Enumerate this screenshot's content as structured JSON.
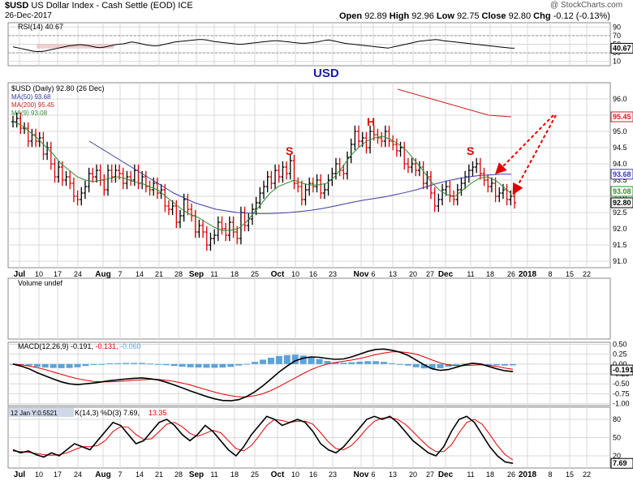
{
  "header": {
    "symbol": "$USD",
    "name": "US Dollar Index - Cash Settle (EOD)",
    "exchange": "ICE",
    "date": "26-Dec-2017",
    "watermark": "@ StockCharts.com",
    "quote": {
      "open_label": "Open",
      "open": "92.89",
      "high_label": "High",
      "high": "92.96",
      "low_label": "Low",
      "low": "92.75",
      "close_label": "Close",
      "close": "92.80",
      "chg_label": "Chg",
      "chg": "-0.12 (-0.13%)"
    }
  },
  "colors": {
    "background": "#ffffff",
    "grid": "#d8d8d8",
    "up_bar": "#000000",
    "down_bar": "#e00000",
    "ma50": "#3b3ba8",
    "ma200": "#cc2020",
    "ma9": "#2e8b2e",
    "macd": "#000000",
    "signal": "#e00000",
    "histogram": "#5ba3d9",
    "annotation": "#e00000",
    "usd_text": "#1b1ba8"
  },
  "chart_data": [
    {
      "type": "line",
      "panel": "rsi",
      "label": "RSI(14) 40.67",
      "value_badge": "40.67",
      "y_ticks": [
        "90",
        "70",
        "50",
        "30",
        "10"
      ],
      "ylim": [
        0,
        100
      ],
      "values": [
        44,
        42,
        40,
        38,
        36,
        34,
        33,
        33,
        34,
        36,
        38,
        40,
        42,
        44,
        46,
        47,
        48,
        49,
        48,
        47,
        45,
        43,
        42,
        43,
        45,
        47,
        49,
        50,
        51,
        53,
        55,
        54,
        52,
        50,
        48,
        47,
        46,
        47,
        49,
        51,
        53,
        55,
        56,
        57,
        58,
        59,
        60,
        61,
        61,
        60,
        58,
        56,
        55,
        54,
        53,
        52,
        51,
        50,
        50,
        51,
        52,
        53,
        54,
        55,
        56,
        57,
        58,
        58,
        57,
        56,
        55,
        54,
        53,
        52,
        52,
        53,
        54,
        55,
        57,
        59,
        60,
        58,
        56,
        54,
        52,
        51,
        50,
        49,
        48,
        47,
        46,
        45,
        44,
        43,
        42,
        41,
        43,
        45,
        47,
        49,
        51,
        53,
        55,
        57,
        58,
        59,
        60,
        61,
        60,
        58,
        57,
        56,
        55,
        54,
        53,
        52,
        51,
        50,
        49,
        48,
        47,
        46,
        45,
        44,
        43,
        42,
        41,
        40.67
      ]
    },
    {
      "type": "bar",
      "panel": "price",
      "series": [
        {
          "name": "$USD (Daily) 92.80 (26 Dec)",
          "kind": "ohlc"
        },
        {
          "name": "MA(50) 93.68",
          "kind": "line"
        },
        {
          "name": "MA(200) 95.45",
          "kind": "line"
        },
        {
          "name": "MA(9) 93.08",
          "kind": "line"
        }
      ],
      "badges": [
        "95.45",
        "93.68",
        "93.08",
        "92.80"
      ],
      "y_ticks": [
        "96.0",
        "95.5",
        "95.0",
        "94.5",
        "94.0",
        "93.5",
        "93.0",
        "92.5",
        "92.0",
        "91.5",
        "91.0"
      ],
      "ylim": [
        90.8,
        96.5
      ],
      "x_ticks": [
        "Jul",
        "10",
        "17",
        "24",
        "Aug",
        "7",
        "14",
        "21",
        "28",
        "Sep",
        "11",
        "18",
        "25",
        "Oct",
        "10",
        "16",
        "23",
        "Nov",
        "6",
        "13",
        "20",
        "27",
        "Dec",
        "11",
        "18",
        "26",
        "2018",
        "8",
        "15",
        "22"
      ],
      "x_tick_bold": [
        "Jul",
        "Aug",
        "Sep",
        "Oct",
        "Nov",
        "Dec",
        "2018"
      ],
      "closes": [
        95.3,
        95.4,
        95.1,
        95.1,
        94.7,
        94.9,
        94.7,
        94.8,
        94.3,
        94.5,
        94.0,
        93.6,
        93.9,
        93.5,
        93.6,
        93.4,
        93.0,
        92.9,
        93.1,
        93.3,
        93.7,
        93.6,
        93.8,
        93.5,
        93.2,
        93.8,
        93.6,
        93.8,
        93.7,
        93.4,
        93.6,
        93.5,
        93.8,
        93.4,
        93.6,
        93.3,
        93.2,
        93.4,
        93.1,
        93.2,
        92.7,
        92.6,
        92.7,
        92.2,
        92.4,
        92.9,
        92.6,
        92.4,
        91.9,
        92.1,
        91.9,
        91.5,
        91.7,
        91.8,
        92.2,
        92.0,
        91.8,
        92.2,
        91.9,
        91.7,
        92.5,
        92.1,
        92.3,
        92.6,
        92.8,
        93.1,
        93.3,
        93.6,
        93.4,
        93.8,
        93.6,
        93.9,
        93.7,
        94.1,
        93.4,
        93.3,
        92.9,
        93.2,
        93.4,
        93.3,
        93.5,
        93.1,
        93.2,
        93.5,
        93.7,
        94.0,
        93.8,
        93.7,
        94.2,
        94.6,
        95.0,
        94.7,
        94.8,
        94.5,
        95.0,
        94.9,
        94.8,
        94.7,
        95.0,
        94.7,
        94.6,
        94.4,
        94.5,
        94.0,
        93.9,
        94.0,
        93.8,
        93.9,
        93.4,
        93.6,
        93.1,
        92.7,
        92.9,
        93.2,
        93.3,
        93.0,
        92.9,
        93.2,
        93.4,
        93.6,
        93.8,
        93.9,
        94.0,
        93.7,
        93.5,
        93.3,
        93.4,
        93.0,
        93.1,
        93.2,
        92.9,
        93.0,
        92.8
      ],
      "ma50": [
        94.7,
        94.5,
        94.3,
        94.1,
        93.9,
        93.7,
        93.5,
        93.3,
        93.1,
        92.95,
        92.8,
        92.7,
        92.6,
        92.55,
        92.5,
        92.48,
        92.47,
        92.47,
        92.48,
        92.5,
        92.53,
        92.57,
        92.62,
        92.68,
        92.75,
        92.82,
        92.88,
        92.93,
        92.98,
        93.05,
        93.12,
        93.2,
        93.3,
        93.4,
        93.48,
        93.55,
        93.6,
        93.64,
        93.66,
        93.68,
        93.68
      ],
      "ma200": [
        96.3,
        96.1,
        95.9,
        95.7,
        95.5,
        95.45
      ],
      "ma9": [
        95.3,
        95.2,
        95.0,
        94.8,
        94.55,
        94.3,
        94.0,
        93.8,
        93.6,
        93.5,
        93.45,
        93.5,
        93.55,
        93.6,
        93.55,
        93.45,
        93.4,
        93.3,
        93.2,
        93.0,
        92.8,
        92.6,
        92.45,
        92.35,
        92.2,
        92.05,
        91.95,
        91.95,
        92.0,
        92.2,
        92.5,
        92.8,
        93.1,
        93.3,
        93.4,
        93.5,
        93.4,
        93.35,
        93.35,
        93.4,
        93.6,
        93.9,
        94.25,
        94.5,
        94.7,
        94.8,
        94.85,
        94.75,
        94.6,
        94.4,
        94.1,
        93.8,
        93.45,
        93.2,
        93.05,
        93.0,
        93.2,
        93.4,
        93.55,
        93.6,
        93.5,
        93.3,
        93.08
      ]
    },
    {
      "type": "bar",
      "panel": "volume",
      "label": "Volume undef",
      "values": []
    },
    {
      "type": "line",
      "panel": "macd",
      "label": "MACD(12,26,9)",
      "macd_value": "-0.191",
      "signal_value": "-0.131",
      "hist_value": "-0.060",
      "badge": "-0.191",
      "y_ticks": [
        "0.50",
        "0.25",
        "0.00",
        "-0.25",
        "-0.50",
        "-0.75",
        "-1.00"
      ],
      "ylim": [
        -1.05,
        0.55
      ],
      "macd": [
        0.0,
        -0.05,
        -0.12,
        -0.22,
        -0.3,
        -0.38,
        -0.45,
        -0.5,
        -0.52,
        -0.5,
        -0.48,
        -0.45,
        -0.42,
        -0.4,
        -0.38,
        -0.36,
        -0.35,
        -0.37,
        -0.4,
        -0.46,
        -0.53,
        -0.6,
        -0.68,
        -0.75,
        -0.82,
        -0.88,
        -0.92,
        -0.93,
        -0.9,
        -0.82,
        -0.7,
        -0.55,
        -0.38,
        -0.2,
        -0.05,
        0.08,
        0.15,
        0.18,
        0.17,
        0.14,
        0.12,
        0.13,
        0.18,
        0.25,
        0.32,
        0.37,
        0.38,
        0.35,
        0.3,
        0.22,
        0.1,
        -0.02,
        -0.12,
        -0.16,
        -0.14,
        -0.08,
        -0.02,
        0.02,
        0.0,
        -0.06,
        -0.12,
        -0.17,
        -0.191
      ],
      "signal": [
        0.0,
        -0.02,
        -0.05,
        -0.09,
        -0.14,
        -0.2,
        -0.26,
        -0.32,
        -0.37,
        -0.41,
        -0.44,
        -0.45,
        -0.45,
        -0.44,
        -0.43,
        -0.41,
        -0.4,
        -0.39,
        -0.39,
        -0.41,
        -0.44,
        -0.48,
        -0.53,
        -0.59,
        -0.65,
        -0.71,
        -0.76,
        -0.8,
        -0.83,
        -0.83,
        -0.8,
        -0.75,
        -0.67,
        -0.57,
        -0.46,
        -0.35,
        -0.24,
        -0.14,
        -0.06,
        0.0,
        0.04,
        0.07,
        0.1,
        0.14,
        0.19,
        0.24,
        0.28,
        0.31,
        0.31,
        0.29,
        0.25,
        0.18,
        0.1,
        0.03,
        -0.02,
        -0.04,
        -0.04,
        -0.03,
        -0.02,
        -0.03,
        -0.06,
        -0.1,
        -0.131
      ],
      "histogram": [
        0.0,
        -0.03,
        -0.07,
        -0.13,
        -0.16,
        -0.18,
        -0.19,
        -0.18,
        -0.15,
        -0.09,
        -0.04,
        0.0,
        0.03,
        0.04,
        0.05,
        0.05,
        0.05,
        0.02,
        -0.01,
        -0.05,
        -0.09,
        -0.12,
        -0.15,
        -0.16,
        -0.17,
        -0.17,
        -0.16,
        -0.13,
        -0.07,
        0.01,
        0.1,
        0.2,
        0.29,
        0.37,
        0.41,
        0.43,
        0.39,
        0.32,
        0.23,
        0.14,
        0.08,
        0.06,
        0.08,
        0.11,
        0.13,
        0.13,
        0.1,
        0.04,
        -0.01,
        -0.07,
        -0.15,
        -0.2,
        -0.22,
        -0.19,
        -0.12,
        -0.04,
        0.02,
        0.05,
        0.02,
        -0.03,
        -0.06,
        -0.07,
        -0.06
      ]
    },
    {
      "type": "line",
      "panel": "stochastic",
      "label_prefix": "12 Jan Y:0.5521",
      "label": "K(14,3) %D(3) 7.69,",
      "d_value": "13.35",
      "badge": "7.69",
      "y_ticks": [
        "80",
        "50",
        "20"
      ],
      "ylim": [
        0,
        100
      ],
      "k": [
        30,
        25,
        28,
        22,
        18,
        25,
        20,
        30,
        40,
        35,
        30,
        45,
        60,
        75,
        70,
        55,
        40,
        45,
        60,
        75,
        80,
        70,
        55,
        45,
        55,
        70,
        60,
        45,
        30,
        20,
        35,
        55,
        70,
        85,
        80,
        70,
        75,
        80,
        75,
        60,
        40,
        30,
        25,
        35,
        50,
        65,
        80,
        85,
        80,
        85,
        75,
        60,
        45,
        35,
        25,
        20,
        35,
        60,
        80,
        85,
        75,
        55,
        35,
        20,
        10,
        7.69
      ],
      "d": [
        28,
        27,
        26,
        24,
        22,
        21,
        22,
        25,
        30,
        35,
        35,
        37,
        45,
        60,
        68,
        67,
        55,
        47,
        48,
        60,
        72,
        75,
        68,
        57,
        52,
        57,
        62,
        58,
        45,
        32,
        28,
        37,
        53,
        70,
        80,
        78,
        75,
        77,
        77,
        72,
        58,
        43,
        32,
        30,
        37,
        50,
        65,
        77,
        82,
        83,
        80,
        72,
        60,
        47,
        35,
        27,
        27,
        38,
        58,
        75,
        80,
        72,
        55,
        37,
        22,
        13.35
      ]
    }
  ],
  "annotations": {
    "usd_title": "USD",
    "left_shoulder": "S",
    "head": "H",
    "right_shoulder": "S"
  }
}
